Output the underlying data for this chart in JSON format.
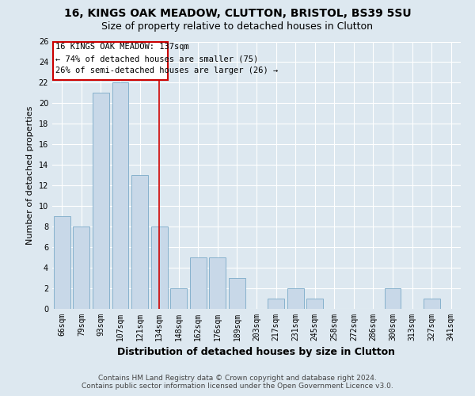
{
  "title": "16, KINGS OAK MEADOW, CLUTTON, BRISTOL, BS39 5SU",
  "subtitle": "Size of property relative to detached houses in Clutton",
  "xlabel": "Distribution of detached houses by size in Clutton",
  "ylabel": "Number of detached properties",
  "categories": [
    "66sqm",
    "79sqm",
    "93sqm",
    "107sqm",
    "121sqm",
    "134sqm",
    "148sqm",
    "162sqm",
    "176sqm",
    "189sqm",
    "203sqm",
    "217sqm",
    "231sqm",
    "245sqm",
    "258sqm",
    "272sqm",
    "286sqm",
    "300sqm",
    "313sqm",
    "327sqm",
    "341sqm"
  ],
  "values": [
    9,
    8,
    21,
    22,
    13,
    8,
    2,
    5,
    5,
    3,
    0,
    1,
    2,
    1,
    0,
    0,
    0,
    2,
    0,
    1,
    0
  ],
  "bar_color": "#c8d8e8",
  "bar_edge_color": "#7aaac8",
  "vline_x_index": 5,
  "vline_color": "#cc0000",
  "annotation_box_color": "#cc0000",
  "annotation_text_line1": "16 KINGS OAK MEADOW: 137sqm",
  "annotation_text_line2": "← 74% of detached houses are smaller (75)",
  "annotation_text_line3": "26% of semi-detached houses are larger (26) →",
  "ylim": [
    0,
    26
  ],
  "yticks": [
    0,
    2,
    4,
    6,
    8,
    10,
    12,
    14,
    16,
    18,
    20,
    22,
    24,
    26
  ],
  "background_color": "#dde8f0",
  "grid_color": "#ffffff",
  "footer_line1": "Contains HM Land Registry data © Crown copyright and database right 2024.",
  "footer_line2": "Contains public sector information licensed under the Open Government Licence v3.0.",
  "title_fontsize": 10,
  "subtitle_fontsize": 9,
  "xlabel_fontsize": 9,
  "ylabel_fontsize": 8,
  "tick_fontsize": 7,
  "annotation_fontsize": 7.5,
  "footer_fontsize": 6.5
}
